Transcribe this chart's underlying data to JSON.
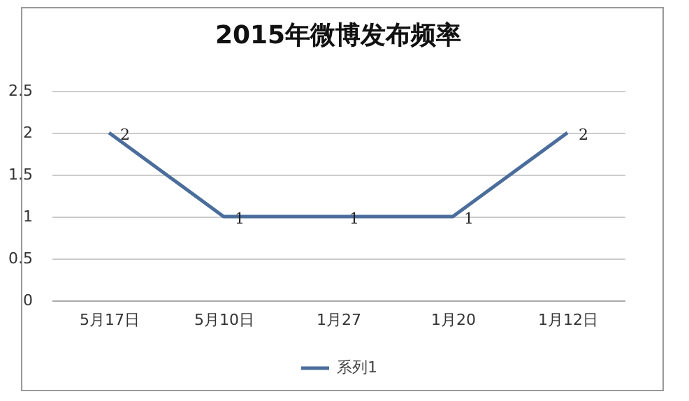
{
  "chart_data": {
    "type": "line",
    "title": "2015年微博发布频率",
    "categories": [
      "5月17日",
      "5月10日",
      "1月27",
      "1月20",
      "1月12日"
    ],
    "series": [
      {
        "name": "系列1",
        "color": "#4a6d9c",
        "values": [
          2,
          1,
          1,
          1,
          2
        ]
      }
    ],
    "ylim": [
      0,
      2.5
    ],
    "yticks": [
      0,
      0.5,
      1,
      1.5,
      2,
      2.5
    ],
    "grid": "y",
    "legend": "bottom",
    "data_labels": true,
    "marker": "none",
    "line_style": "solid"
  }
}
